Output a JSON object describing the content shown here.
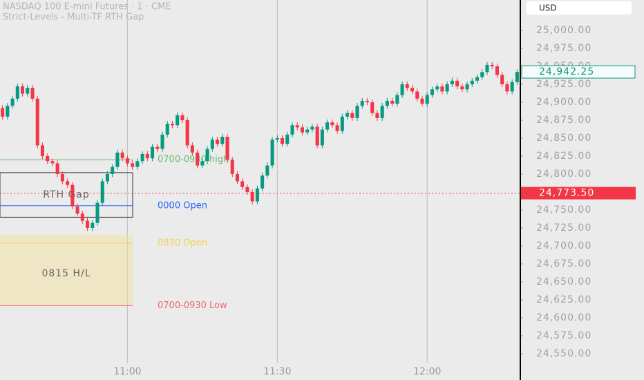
{
  "chart_data": {
    "type": "candlestick",
    "title": "NASDAQ 100 E-mini Futures · 1 · CME",
    "subtitle": "Strict-Levels - Multi-TF RTH Gap",
    "currency": "USD",
    "categories": [
      null,
      null,
      null,
      null,
      null,
      null,
      null,
      null,
      null,
      null,
      null,
      null,
      null,
      null,
      null,
      null,
      null,
      null,
      null,
      null,
      null,
      null,
      null,
      null,
      null,
      "11:00",
      null,
      null,
      null,
      null,
      null,
      null,
      null,
      null,
      null,
      null,
      null,
      null,
      null,
      null,
      null,
      null,
      null,
      null,
      null,
      null,
      null,
      null,
      null,
      null,
      null,
      null,
      null,
      null,
      null,
      "11:30",
      null,
      null,
      null,
      null,
      null,
      null,
      null,
      null,
      null,
      null,
      null,
      null,
      null,
      null,
      null,
      null,
      null,
      null,
      null,
      null,
      null,
      null,
      null,
      null,
      null,
      null,
      null,
      null,
      null,
      "12:00",
      null,
      null,
      null,
      null,
      null,
      null,
      null,
      null,
      null,
      null,
      null,
      null,
      null,
      null,
      null,
      null,
      null,
      null
    ],
    "open": [
      24892,
      24880,
      24895,
      24905,
      24922,
      24912,
      24920,
      24905,
      24840,
      24825,
      24818,
      24815,
      24800,
      24790,
      24785,
      24755,
      24745,
      24735,
      24725,
      24732,
      24760,
      24790,
      24800,
      24810,
      24830,
      24822,
      24815,
      24810,
      24818,
      24828,
      24822,
      24838,
      24835,
      24855,
      24870,
      24868,
      24882,
      24875,
      24840,
      24830,
      24812,
      24818,
      24835,
      24848,
      24842,
      24852,
      24820,
      24800,
      24790,
      24782,
      24775,
      24762,
      24780,
      24798,
      24812,
      24848,
      24850,
      24842,
      24855,
      24868,
      24865,
      24858,
      24862,
      24866,
      24840,
      24862,
      24872,
      24868,
      24860,
      24880,
      24885,
      24878,
      24895,
      24902,
      24900,
      24885,
      24878,
      24895,
      24902,
      24898,
      24910,
      24925,
      24920,
      24915,
      24905,
      24898,
      24910,
      24918,
      24922,
      24915,
      24925,
      24930,
      24922,
      24918,
      24925,
      24930,
      24935,
      24942,
      24952,
      24950,
      24938,
      24925,
      24915,
      24928
    ],
    "high": [
      24896,
      24899,
      24909,
      24926,
      24926,
      24924,
      24924,
      24909,
      24844,
      24829,
      24822,
      24819,
      24804,
      24794,
      24789,
      24759,
      24749,
      24739,
      24736,
      24764,
      24794,
      24804,
      24814,
      24834,
      24834,
      24826,
      24819,
      24822,
      24832,
      24832,
      24842,
      24842,
      24859,
      24874,
      24874,
      24886,
      24886,
      24879,
      24844,
      24834,
      24822,
      24839,
      24852,
      24852,
      24856,
      24856,
      24824,
      24804,
      24794,
      24786,
      24779,
      24784,
      24802,
      24816,
      24852,
      24854,
      24854,
      24859,
      24872,
      24872,
      24869,
      24866,
      24870,
      24870,
      24866,
      24876,
      24876,
      24872,
      24884,
      24889,
      24889,
      24899,
      24906,
      24906,
      24904,
      24889,
      24899,
      24906,
      24906,
      24914,
      24929,
      24929,
      24924,
      24919,
      24909,
      24914,
      24922,
      24926,
      24926,
      24929,
      24934,
      24934,
      24926,
      24929,
      24934,
      24939,
      24946,
      24956,
      24956,
      24954,
      24942,
      24929,
      24932,
      24946
    ],
    "low": [
      24876,
      24876,
      24891,
      24901,
      24908,
      24908,
      24901,
      24836,
      24821,
      24814,
      24811,
      24796,
      24786,
      24781,
      24751,
      24741,
      24731,
      24721,
      24721,
      24728,
      24756,
      24786,
      24796,
      24806,
      24818,
      24811,
      24806,
      24806,
      24814,
      24818,
      24818,
      24831,
      24831,
      24851,
      24864,
      24864,
      24871,
      24836,
      24826,
      24808,
      24808,
      24814,
      24831,
      24838,
      24838,
      24816,
      24796,
      24786,
      24778,
      24771,
      24758,
      24758,
      24776,
      24794,
      24808,
      24844,
      24838,
      24838,
      24851,
      24861,
      24854,
      24854,
      24858,
      24836,
      24836,
      24858,
      24864,
      24856,
      24856,
      24876,
      24874,
      24874,
      24891,
      24896,
      24881,
      24874,
      24874,
      24891,
      24894,
      24894,
      24906,
      24916,
      24911,
      24901,
      24894,
      24894,
      24906,
      24914,
      24911,
      24911,
      24921,
      24918,
      24914,
      24914,
      24921,
      24926,
      24931,
      24938,
      24946,
      24934,
      24921,
      24911,
      24911,
      24924
    ],
    "close": [
      24880,
      24895,
      24905,
      24922,
      24912,
      24920,
      24905,
      24840,
      24825,
      24818,
      24815,
      24800,
      24790,
      24785,
      24755,
      24745,
      24735,
      24725,
      24732,
      24760,
      24790,
      24800,
      24810,
      24830,
      24822,
      24815,
      24810,
      24818,
      24828,
      24822,
      24838,
      24835,
      24855,
      24870,
      24868,
      24882,
      24875,
      24840,
      24830,
      24812,
      24818,
      24835,
      24848,
      24842,
      24852,
      24820,
      24800,
      24790,
      24782,
      24775,
      24762,
      24780,
      24798,
      24812,
      24848,
      24850,
      24842,
      24855,
      24868,
      24865,
      24858,
      24862,
      24866,
      24840,
      24862,
      24872,
      24868,
      24860,
      24880,
      24885,
      24878,
      24895,
      24902,
      24900,
      24885,
      24878,
      24895,
      24902,
      24898,
      24910,
      24925,
      24920,
      24915,
      24905,
      24898,
      24910,
      24918,
      24922,
      24915,
      24925,
      24930,
      24922,
      24918,
      24925,
      24930,
      24935,
      24942,
      24952,
      24950,
      24938,
      24925,
      24915,
      24928,
      24942.25
    ],
    "up_color": "#089981",
    "down_color": "#f23645",
    "ylim": [
      24537.5,
      25042.3
    ],
    "yticks": [
      {
        "value": 24550,
        "label": "24,550.00"
      },
      {
        "value": 24575,
        "label": "24,575.00"
      },
      {
        "value": 24600,
        "label": "24,600.00"
      },
      {
        "value": 24625,
        "label": "24,625.00"
      },
      {
        "value": 24650,
        "label": "24,650.00"
      },
      {
        "value": 24675,
        "label": "24,675.00"
      },
      {
        "value": 24700,
        "label": "24,700.00"
      },
      {
        "value": 24725,
        "label": "24,725.00"
      },
      {
        "value": 24750,
        "label": "24,750.00"
      },
      {
        "value": 24775,
        "label": "24,775.00"
      },
      {
        "value": 24800,
        "label": "24,800.00"
      },
      {
        "value": 24825,
        "label": "24,825.00"
      },
      {
        "value": 24850,
        "label": "24,850.00"
      },
      {
        "value": 24875,
        "label": "24,875.00"
      },
      {
        "value": 24900,
        "label": "24,900.00"
      },
      {
        "value": 24925,
        "label": "24,925.00"
      },
      {
        "value": 24950,
        "label": "24,950.00"
      },
      {
        "value": 24975,
        "label": "24,975.00"
      },
      {
        "value": 25000,
        "label": "25,000.00"
      }
    ],
    "levels": [
      {
        "label": "0700-0930 high",
        "value": 24820,
        "color": "#6ab96e"
      },
      {
        "label": "0000 Open",
        "value": 24756,
        "color": "#2962ff"
      },
      {
        "label": "0830 Open",
        "value": 24704,
        "color": "#f0d24a"
      },
      {
        "label": "0700-0930 Low",
        "value": 24617,
        "color": "#f0656f"
      }
    ],
    "boxes": [
      {
        "label": "RTH Gap",
        "range": [
          24740,
          24802
        ],
        "fill": "rgba(0,0,0,0)",
        "stroke": "#333333"
      },
      {
        "label": "0815 H/L",
        "range": [
          24617,
          24716
        ],
        "fill": "rgba(245,225,150,0.45)",
        "stroke": "none"
      }
    ],
    "last_price": {
      "value": 24942.25,
      "label": "24,942.25"
    },
    "current_price": {
      "value": 24773.5,
      "label": "24,773.50"
    }
  }
}
